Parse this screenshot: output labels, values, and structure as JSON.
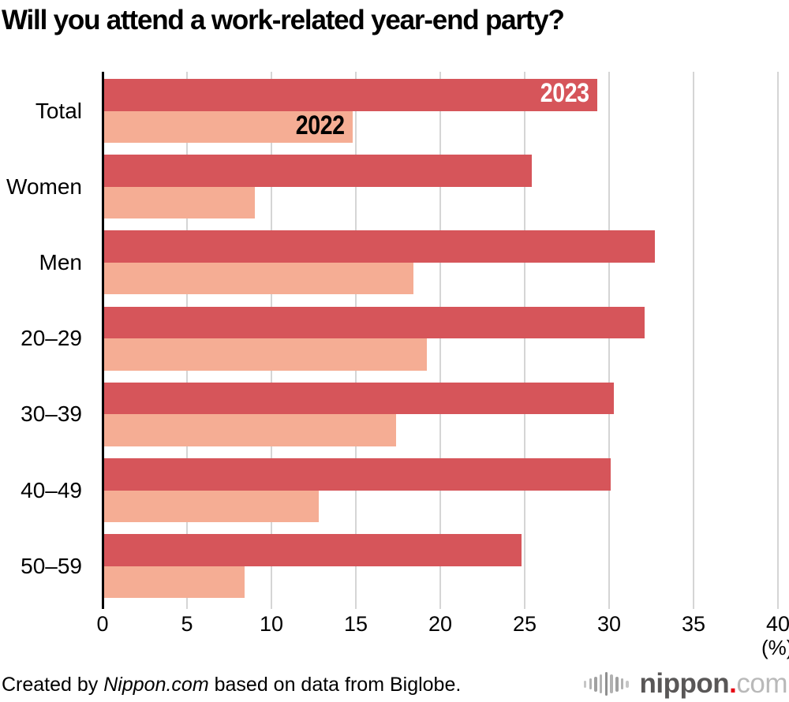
{
  "title": "Will you attend a work-related year-end party?",
  "chart_data": {
    "type": "bar",
    "orientation": "horizontal",
    "title": "Will you attend a work-related year-end party?",
    "categories": [
      "Total",
      "Women",
      "Men",
      "20–29",
      "30–39",
      "40–49",
      "50–59"
    ],
    "series": [
      {
        "name": "2023",
        "values": [
          29.3,
          25.4,
          32.7,
          32.1,
          30.3,
          30.1,
          24.8
        ],
        "color": "#d6555a",
        "label_color": "#ffffff"
      },
      {
        "name": "2022",
        "values": [
          14.8,
          9.0,
          18.4,
          19.2,
          17.4,
          12.8,
          8.4
        ],
        "color": "#f5ad94",
        "label_color": "#000000"
      }
    ],
    "xlim": [
      0,
      40
    ],
    "x_ticks": [
      0,
      5,
      10,
      15,
      20,
      25,
      30,
      35,
      40
    ],
    "x_unit_label": "(%)",
    "xlabel": "",
    "ylabel": "",
    "grid": "vertical gridlines every 5 units",
    "legend": "series year labels shown inside first bar group"
  },
  "footer": {
    "credit_prefix": "Created by ",
    "credit_source": "Nippon.com",
    "credit_suffix": " based on data from Biglobe."
  },
  "logo": {
    "icon": "soundwave-icon",
    "text_bold": "nippon",
    "dot": ".",
    "text_light": "com",
    "bold_color": "#595757",
    "dot_color": "#e60012",
    "light_color": "#b9b9b9",
    "icon_color": "#b2b2b2"
  },
  "colors": {
    "background": "#ffffff",
    "gridline": "#d5d5d5",
    "axis": "#000000",
    "bar_2023": "#d6555a",
    "bar_2022": "#f5ad94",
    "title": "#000000"
  }
}
